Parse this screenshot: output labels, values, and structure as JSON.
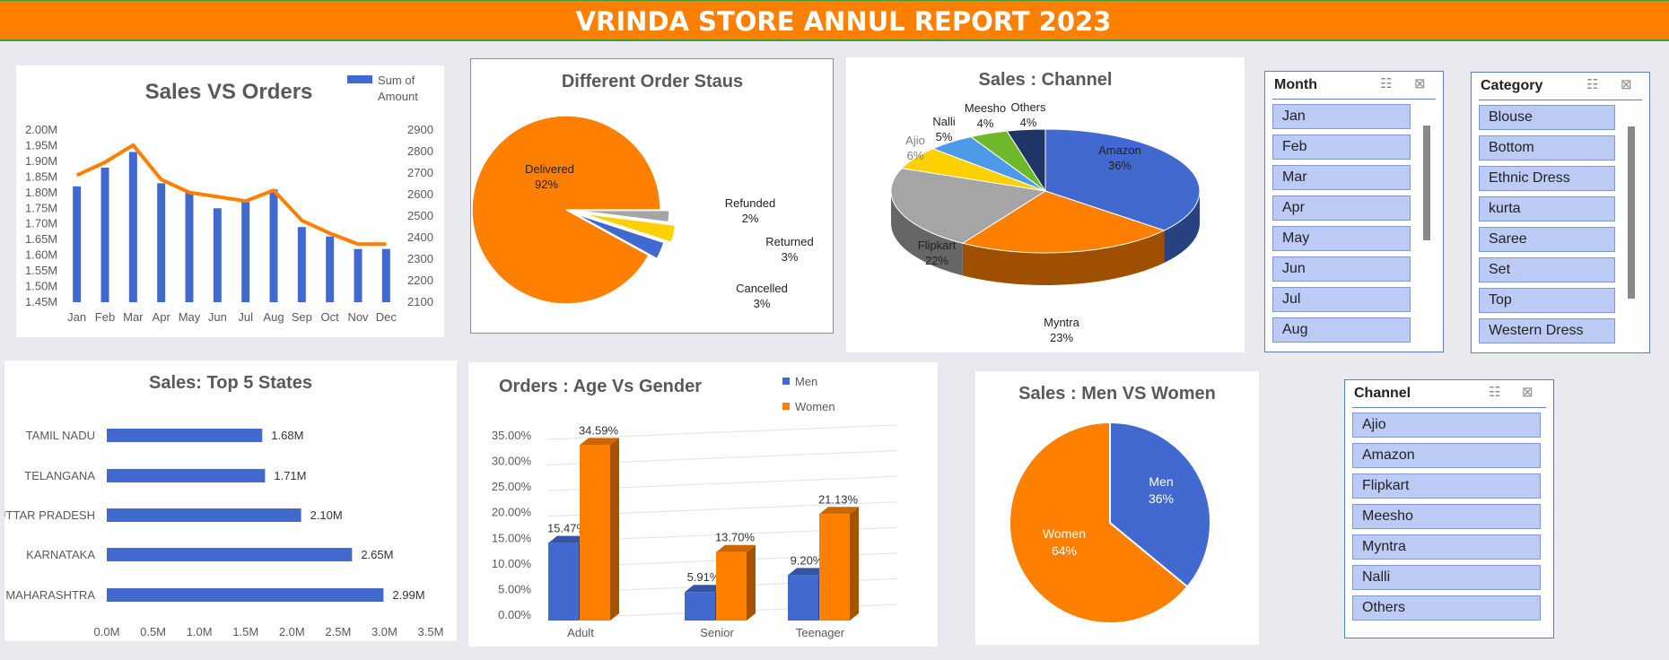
{
  "title": "VRINDA STORE ANNUL REPORT 2023",
  "colors": {
    "orange": "#ff7f00",
    "blue": "#4169cf",
    "grey": "#a5a5a5",
    "yellow": "#ffd000",
    "lightblue": "#4d9be8",
    "green": "#70b82b",
    "navy": "#1e3566"
  },
  "chart_data": [
    {
      "type": "bar+line",
      "title": "Sales VS Orders",
      "legend": [
        "Sum of",
        "Amount"
      ],
      "categories": [
        "Jan",
        "Feb",
        "Mar",
        "Apr",
        "May",
        "Jun",
        "Jul",
        "Aug",
        "Sep",
        "Oct",
        "Nov",
        "Dec"
      ],
      "series": [
        {
          "name": "Sum of Amount",
          "type": "bar",
          "axis": "left",
          "values": [
            1.82,
            1.88,
            1.93,
            1.83,
            1.8,
            1.75,
            1.77,
            1.81,
            1.69,
            1.66,
            1.62,
            1.62
          ]
        },
        {
          "type": "line",
          "axis": "right",
          "values": [
            2690,
            2750,
            2830,
            2670,
            2610,
            2590,
            2570,
            2620,
            2480,
            2420,
            2370,
            2370
          ]
        }
      ],
      "y_left_ticks": [
        "2.00M",
        "1.95M",
        "1.90M",
        "1.85M",
        "1.80M",
        "1.75M",
        "1.70M",
        "1.65M",
        "1.60M",
        "1.55M",
        "1.50M",
        "1.45M"
      ],
      "y_right_ticks": [
        "2900",
        "2800",
        "2700",
        "2600",
        "2500",
        "2400",
        "2300",
        "2200",
        "2100"
      ],
      "ylim_left": [
        1.45,
        2.0
      ],
      "ylim_right": [
        2100,
        2900
      ]
    },
    {
      "type": "pie",
      "title": "Different Order Staus",
      "slices": [
        {
          "label": "Delivered",
          "pct": "92%",
          "value": 92
        },
        {
          "label": "Refunded",
          "pct": "2%",
          "value": 2
        },
        {
          "label": "Returned",
          "pct": "3%",
          "value": 3
        },
        {
          "label": "Cancelled",
          "pct": "3%",
          "value": 3
        }
      ]
    },
    {
      "type": "pie",
      "title": "Sales : Channel",
      "slices": [
        {
          "label": "Amazon",
          "pct": "36%",
          "value": 36
        },
        {
          "label": "Myntra",
          "pct": "23%",
          "value": 23
        },
        {
          "label": "Flipkart",
          "pct": "22%",
          "value": 22
        },
        {
          "label": "Ajio",
          "pct": "6%",
          "value": 6
        },
        {
          "label": "Nalli",
          "pct": "5%",
          "value": 5
        },
        {
          "label": "Meesho",
          "pct": "4%",
          "value": 4
        },
        {
          "label": "Others",
          "pct": "4%",
          "value": 4
        }
      ]
    },
    {
      "type": "bar",
      "orientation": "horizontal",
      "title": "Sales: Top 5 States",
      "categories": [
        "TAMIL NADU",
        "TELANGANA",
        "UTTAR PRADESH",
        "KARNATAKA",
        "MAHARASHTRA"
      ],
      "values": [
        1.68,
        1.71,
        2.1,
        2.65,
        2.99
      ],
      "labels": [
        "1.68M",
        "1.71M",
        "2.10M",
        "2.65M",
        "2.99M"
      ],
      "x_ticks": [
        "0.0M",
        "0.5M",
        "1.0M",
        "1.5M",
        "2.0M",
        "2.5M",
        "3.0M",
        "3.5M"
      ],
      "xlim": [
        0,
        3.5
      ]
    },
    {
      "type": "bar",
      "title": "Orders : Age Vs Gender",
      "categories": [
        "Adult",
        "Senior",
        "Teenager"
      ],
      "series": [
        {
          "name": "Men",
          "values": [
            15.47,
            5.91,
            9.2
          ],
          "labels": [
            "15.47%",
            "5.91%",
            "9.20%"
          ]
        },
        {
          "name": "Women",
          "values": [
            34.59,
            13.7,
            21.13
          ],
          "labels": [
            "34.59%",
            "13.70%",
            "21.13%"
          ]
        }
      ],
      "y_ticks": [
        "35.00%",
        "30.00%",
        "25.00%",
        "20.00%",
        "15.00%",
        "10.00%",
        "5.00%",
        "0.00%"
      ],
      "ylim": [
        0,
        35
      ]
    },
    {
      "type": "pie",
      "title": "Sales : Men VS Women",
      "slices": [
        {
          "label": "Men",
          "pct": "36%",
          "value": 36
        },
        {
          "label": "Women",
          "pct": "64%",
          "value": 64
        }
      ]
    }
  ],
  "slicers": {
    "month": {
      "title": "Month",
      "items": [
        "Jan",
        "Feb",
        "Mar",
        "Apr",
        "May",
        "Jun",
        "Jul",
        "Aug"
      ]
    },
    "category": {
      "title": "Category",
      "items": [
        "Blouse",
        "Bottom",
        "Ethnic Dress",
        "kurta",
        "Saree",
        "Set",
        "Top",
        "Western Dress"
      ]
    },
    "channel": {
      "title": "Channel",
      "items": [
        "Ajio",
        "Amazon",
        "Flipkart",
        "Meesho",
        "Myntra",
        "Nalli",
        "Others"
      ]
    }
  }
}
